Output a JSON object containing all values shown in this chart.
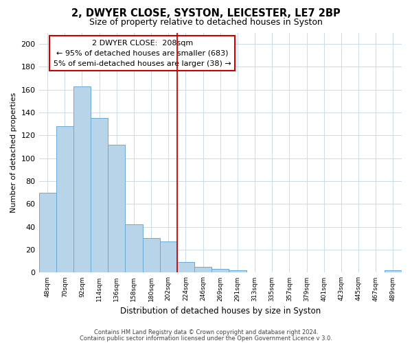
{
  "title": "2, DWYER CLOSE, SYSTON, LEICESTER, LE7 2BP",
  "subtitle": "Size of property relative to detached houses in Syston",
  "xlabel": "Distribution of detached houses by size in Syston",
  "ylabel": "Number of detached properties",
  "bar_values": [
    70,
    128,
    163,
    135,
    112,
    42,
    30,
    27,
    9,
    5,
    3,
    2,
    0,
    0,
    0,
    0,
    0,
    0,
    0,
    0,
    2
  ],
  "bar_labels": [
    "48sqm",
    "70sqm",
    "92sqm",
    "114sqm",
    "136sqm",
    "158sqm",
    "180sqm",
    "202sqm",
    "224sqm",
    "246sqm",
    "269sqm",
    "291sqm",
    "313sqm",
    "335sqm",
    "357sqm",
    "379sqm",
    "401sqm",
    "423sqm",
    "445sqm",
    "467sqm",
    "489sqm"
  ],
  "bar_color": "#b8d4e8",
  "bar_edge_color": "#6aaad4",
  "vline_color": "#cc0000",
  "vline_x": 7.5,
  "annotation_title": "2 DWYER CLOSE:  208sqm",
  "annotation_line1": "← 95% of detached houses are smaller (683)",
  "annotation_line2": "5% of semi-detached houses are larger (38) →",
  "ylim": [
    0,
    210
  ],
  "yticks": [
    0,
    20,
    40,
    60,
    80,
    100,
    120,
    140,
    160,
    180,
    200
  ],
  "footer1": "Contains HM Land Registry data © Crown copyright and database right 2024.",
  "footer2": "Contains public sector information licensed under the Open Government Licence v 3.0.",
  "background_color": "#ffffff",
  "grid_color": "#ccd9e8"
}
